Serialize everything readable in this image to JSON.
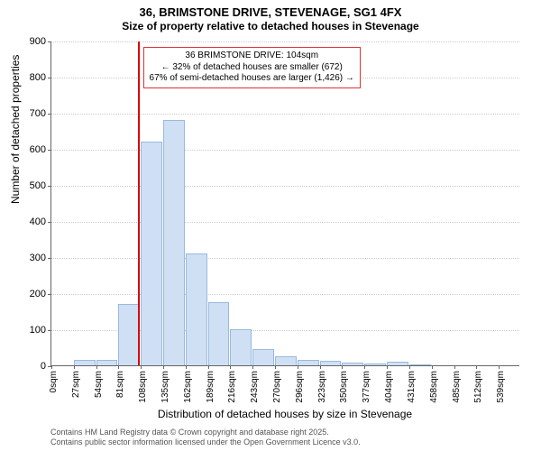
{
  "title": "36, BRIMSTONE DRIVE, STEVENAGE, SG1 4FX",
  "subtitle": "Size of property relative to detached houses in Stevenage",
  "yaxis_label": "Number of detached properties",
  "xaxis_label": "Distribution of detached houses by size in Stevenage",
  "chart": {
    "type": "histogram",
    "background_color": "#ffffff",
    "grid_color": "#cccccc",
    "axis_color": "#666666",
    "bar_fill": "#cfe0f5",
    "bar_stroke": "#9ab8e0",
    "marker_color": "#dd0000",
    "ylim": [
      0,
      900
    ],
    "ytick_step": 100,
    "yticks": [
      0,
      100,
      200,
      300,
      400,
      500,
      600,
      700,
      800,
      900
    ],
    "x_bin_width_sqm": 27,
    "xticks_sqm": [
      0,
      27,
      54,
      81,
      108,
      135,
      162,
      189,
      216,
      243,
      270,
      296,
      323,
      350,
      377,
      404,
      431,
      458,
      485,
      512,
      539
    ],
    "xtick_labels": [
      "0sqm",
      "27sqm",
      "54sqm",
      "81sqm",
      "108sqm",
      "135sqm",
      "162sqm",
      "189sqm",
      "216sqm",
      "243sqm",
      "270sqm",
      "296sqm",
      "323sqm",
      "350sqm",
      "377sqm",
      "404sqm",
      "431sqm",
      "458sqm",
      "485sqm",
      "512sqm",
      "539sqm"
    ],
    "bar_values": [
      0,
      15,
      15,
      170,
      620,
      680,
      310,
      175,
      100,
      45,
      25,
      15,
      12,
      8,
      5,
      10,
      3,
      0,
      0,
      0,
      0
    ],
    "marker_sqm": 104,
    "annotation": {
      "line1": "36 BRIMSTONE DRIVE: 104sqm",
      "line2": "← 32% of detached houses are smaller (672)",
      "line3": "67% of semi-detached houses are larger (1,426) →",
      "border_color": "#d33"
    },
    "label_fontsize": 12,
    "tick_fontsize": 11,
    "title_fontsize": 13
  },
  "footer": {
    "line1": "Contains HM Land Registry data © Crown copyright and database right 2025.",
    "line2": "Contains public sector information licensed under the Open Government Licence v3.0."
  }
}
